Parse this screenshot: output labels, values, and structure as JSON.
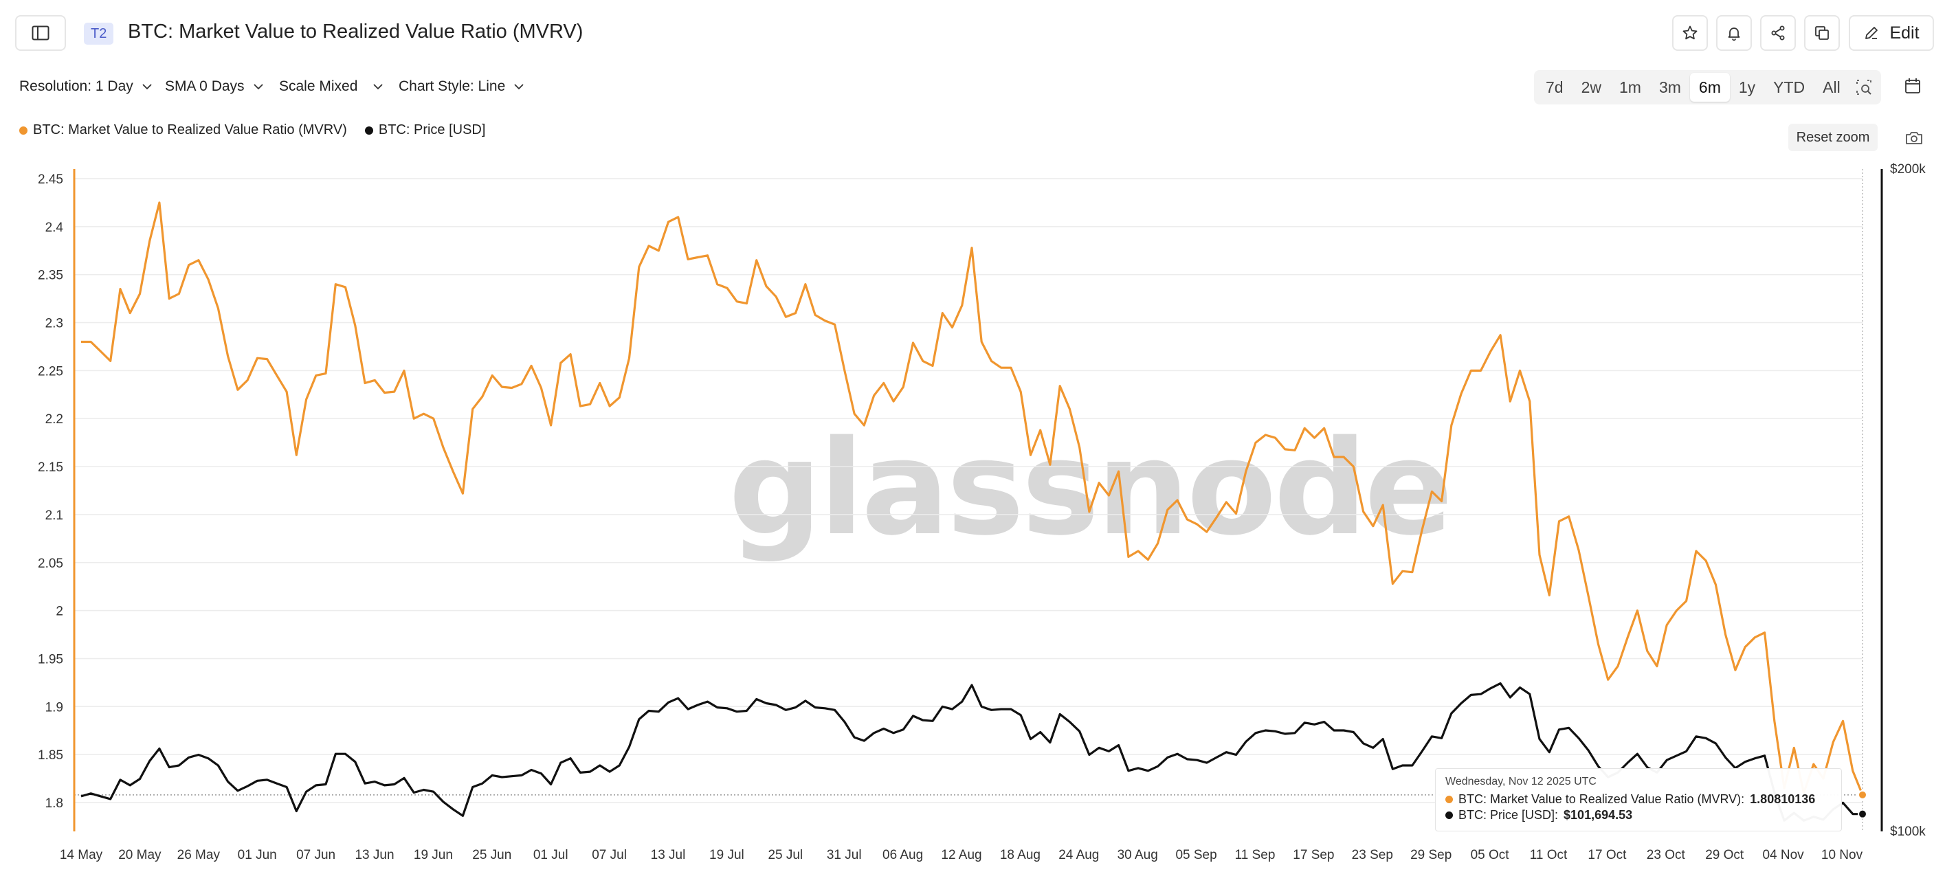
{
  "header": {
    "tag": "T2",
    "title": "BTC: Market Value to Realized Value Ratio (MVRV)",
    "edit_label": "Edit"
  },
  "toolbar": {
    "resolution": "Resolution: 1 Day",
    "sma": "SMA 0 Days",
    "scale": "Scale Mixed",
    "chart_style": "Chart Style: Line",
    "ranges": [
      "7d",
      "2w",
      "1m",
      "3m",
      "6m",
      "1y",
      "YTD",
      "All"
    ],
    "active_range": "6m",
    "reset_zoom": "Reset zoom"
  },
  "legend": {
    "mvrv": "BTC: Market Value to Realized Value Ratio (MVRV)",
    "price": "BTC: Price [USD]"
  },
  "tooltip": {
    "date": "Wednesday, Nov 12 2025 UTC",
    "mvrv_label": "BTC: Market Value to Realized Value Ratio (MVRV):",
    "mvrv_value": "1.80810136",
    "price_label": "BTC: Price [USD]:",
    "price_value": "$101,694.53"
  },
  "watermark": "glassnode",
  "colors": {
    "mvrv": "#f0962f",
    "price": "#111111",
    "grid": "#ececec"
  },
  "chart_data": {
    "type": "line",
    "title": "BTC: Market Value to Realized Value Ratio (MVRV)",
    "x_start": "14 May",
    "x_end": "12 Nov",
    "x_tick_labels": [
      "14 May",
      "20 May",
      "26 May",
      "01 Jun",
      "07 Jun",
      "13 Jun",
      "19 Jun",
      "25 Jun",
      "01 Jul",
      "07 Jul",
      "13 Jul",
      "19 Jul",
      "25 Jul",
      "31 Jul",
      "06 Aug",
      "12 Aug",
      "18 Aug",
      "24 Aug",
      "30 Aug",
      "05 Sep",
      "11 Sep",
      "17 Sep",
      "23 Sep",
      "29 Sep",
      "05 Oct",
      "11 Oct",
      "17 Oct",
      "23 Oct",
      "29 Oct",
      "04 Nov",
      "10 Nov"
    ],
    "left_axis": {
      "label": "MVRV",
      "ylim": [
        1.77,
        2.455
      ],
      "ticks": [
        "2.45",
        "2.4",
        "2.35",
        "2.3",
        "2.25",
        "2.2",
        "2.15",
        "2.1",
        "2.05",
        "2",
        "1.95",
        "1.9",
        "1.85",
        "1.8"
      ]
    },
    "right_axis": {
      "label": "Price [USD]",
      "scale": "log",
      "ticks": [
        "$200k",
        "$100k"
      ]
    },
    "grid": true,
    "legend_position": "top-left",
    "series": [
      {
        "name": "BTC: Market Value to Realized Value Ratio (MVRV)",
        "axis": "left",
        "values": [
          2.28,
          2.28,
          2.27,
          2.26,
          2.335,
          2.31,
          2.33,
          2.385,
          2.425,
          2.325,
          2.33,
          2.36,
          2.365,
          2.345,
          2.315,
          2.265,
          2.23,
          2.24,
          2.263,
          2.262,
          2.245,
          2.228,
          2.162,
          2.22,
          2.245,
          2.247,
          2.34,
          2.337,
          2.297,
          2.237,
          2.24,
          2.227,
          2.228,
          2.25,
          2.2,
          2.205,
          2.2,
          2.17,
          2.145,
          2.122,
          2.21,
          2.223,
          2.245,
          2.233,
          2.232,
          2.236,
          2.255,
          2.232,
          2.193,
          2.258,
          2.267,
          2.213,
          2.215,
          2.237,
          2.213,
          2.222,
          2.263,
          2.358,
          2.38,
          2.375,
          2.405,
          2.41,
          2.366,
          2.368,
          2.37,
          2.34,
          2.336,
          2.322,
          2.32,
          2.365,
          2.338,
          2.327,
          2.306,
          2.31,
          2.34,
          2.308,
          2.302,
          2.298,
          2.25,
          2.205,
          2.193,
          2.224,
          2.237,
          2.218,
          2.233,
          2.279,
          2.26,
          2.255,
          2.31,
          2.295,
          2.318,
          2.378,
          2.28,
          2.26,
          2.253,
          2.253,
          2.228,
          2.162,
          2.188,
          2.152,
          2.234,
          2.21,
          2.17,
          2.103,
          2.133,
          2.12,
          2.145,
          2.056,
          2.062,
          2.053,
          2.07,
          2.105,
          2.115,
          2.095,
          2.09,
          2.082,
          2.097,
          2.113,
          2.101,
          2.145,
          2.175,
          2.183,
          2.18,
          2.168,
          2.167,
          2.19,
          2.18,
          2.19,
          2.16,
          2.16,
          2.15,
          2.103,
          2.088,
          2.11,
          2.028,
          2.041,
          2.04,
          2.084,
          2.124,
          2.114,
          2.193,
          2.226,
          2.25,
          2.25,
          2.27,
          2.287,
          2.218,
          2.25,
          2.218,
          2.058,
          2.016,
          2.093,
          2.098,
          2.063,
          2.015,
          1.965,
          1.928,
          1.942,
          1.972,
          2.0,
          1.958,
          1.942,
          1.985,
          2.0,
          2.01,
          2.062,
          2.052,
          2.027,
          1.975,
          1.938,
          1.962,
          1.972,
          1.977,
          1.885,
          1.815,
          1.857,
          1.81,
          1.84,
          1.825,
          1.863,
          1.885,
          1.833,
          1.808
        ]
      },
      {
        "name": "BTC: Price [USD]",
        "axis": "right",
        "values": [
          103600,
          103900,
          103600,
          103300,
          105400,
          104800,
          105500,
          107500,
          108900,
          106800,
          107000,
          107900,
          108200,
          107800,
          107000,
          105200,
          104200,
          104700,
          105300,
          105400,
          105000,
          104600,
          102000,
          104100,
          104800,
          104900,
          108300,
          108300,
          107400,
          105000,
          105200,
          104800,
          104900,
          105600,
          104000,
          104300,
          104100,
          103000,
          102200,
          101500,
          104600,
          105000,
          105900,
          105700,
          105800,
          105900,
          106500,
          106100,
          104900,
          107300,
          107800,
          106200,
          106300,
          107000,
          106300,
          107000,
          109100,
          112300,
          113300,
          113200,
          114300,
          114800,
          113500,
          114000,
          114400,
          113700,
          113600,
          113200,
          113300,
          114700,
          114200,
          114000,
          113400,
          113700,
          114500,
          113700,
          113600,
          113400,
          112000,
          110200,
          109800,
          110700,
          111200,
          110700,
          111100,
          112700,
          112200,
          112100,
          113800,
          113500,
          114400,
          116400,
          113800,
          113400,
          113500,
          113500,
          112800,
          110000,
          110800,
          109600,
          112900,
          112000,
          110900,
          108200,
          109000,
          108600,
          109300,
          106400,
          106700,
          106400,
          106900,
          107900,
          108300,
          107700,
          107600,
          107300,
          107900,
          108500,
          108200,
          109700,
          110700,
          111000,
          110900,
          110600,
          110700,
          111900,
          111700,
          112000,
          111000,
          111000,
          110800,
          109500,
          109000,
          110000,
          106600,
          107000,
          107000,
          108600,
          110300,
          110100,
          113000,
          114200,
          115200,
          115300,
          116000,
          116600,
          114900,
          116100,
          115300,
          110000,
          108500,
          111100,
          111300,
          110100,
          108700,
          106900,
          105700,
          106200,
          107300,
          108300,
          106800,
          106200,
          107600,
          108100,
          108600,
          110300,
          110100,
          109500,
          107900,
          106700,
          107400,
          107800,
          108100,
          104000,
          101000,
          101800,
          101000,
          101400,
          101100,
          102200,
          102900,
          101700,
          101694.53
        ]
      }
    ]
  }
}
